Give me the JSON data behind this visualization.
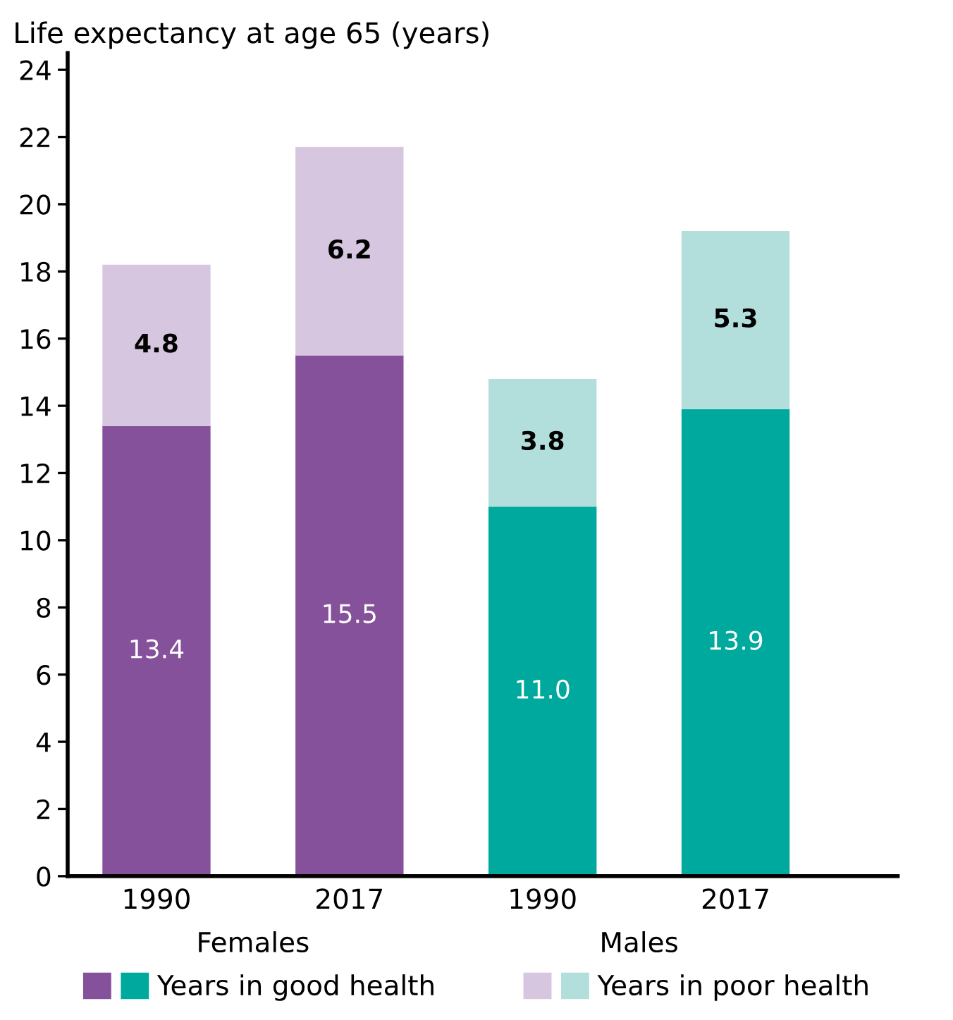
{
  "chart_data": {
    "type": "bar",
    "stacked": true,
    "ylabel": "Life expectancy at age 65 (years)",
    "categories": [
      "1990",
      "2017",
      "1990",
      "2017"
    ],
    "annotations": [
      "Females",
      "Males"
    ],
    "series": [
      {
        "name": "Years in good health",
        "colors": [
          "#85519a",
          "#85519a",
          "#00a99d",
          "#00a99d"
        ],
        "values": [
          13.4,
          15.5,
          11.0,
          13.9
        ],
        "value_labels": [
          "13.4",
          "15.5",
          "11.0",
          "13.9"
        ]
      },
      {
        "name": "Years in poor health",
        "colors": [
          "#d6c6df",
          "#d6c6df",
          "#b2dfdb",
          "#b2dfdb"
        ],
        "values": [
          4.8,
          6.2,
          3.8,
          5.3
        ],
        "value_labels": [
          "4.8",
          "6.2",
          "3.8",
          "5.3"
        ]
      }
    ],
    "ylim": [
      0,
      24.5
    ],
    "yticks": [
      0,
      2,
      4,
      6,
      8,
      10,
      12,
      14,
      16,
      18,
      20,
      22,
      24
    ],
    "grid": false,
    "legend": "bottom"
  }
}
